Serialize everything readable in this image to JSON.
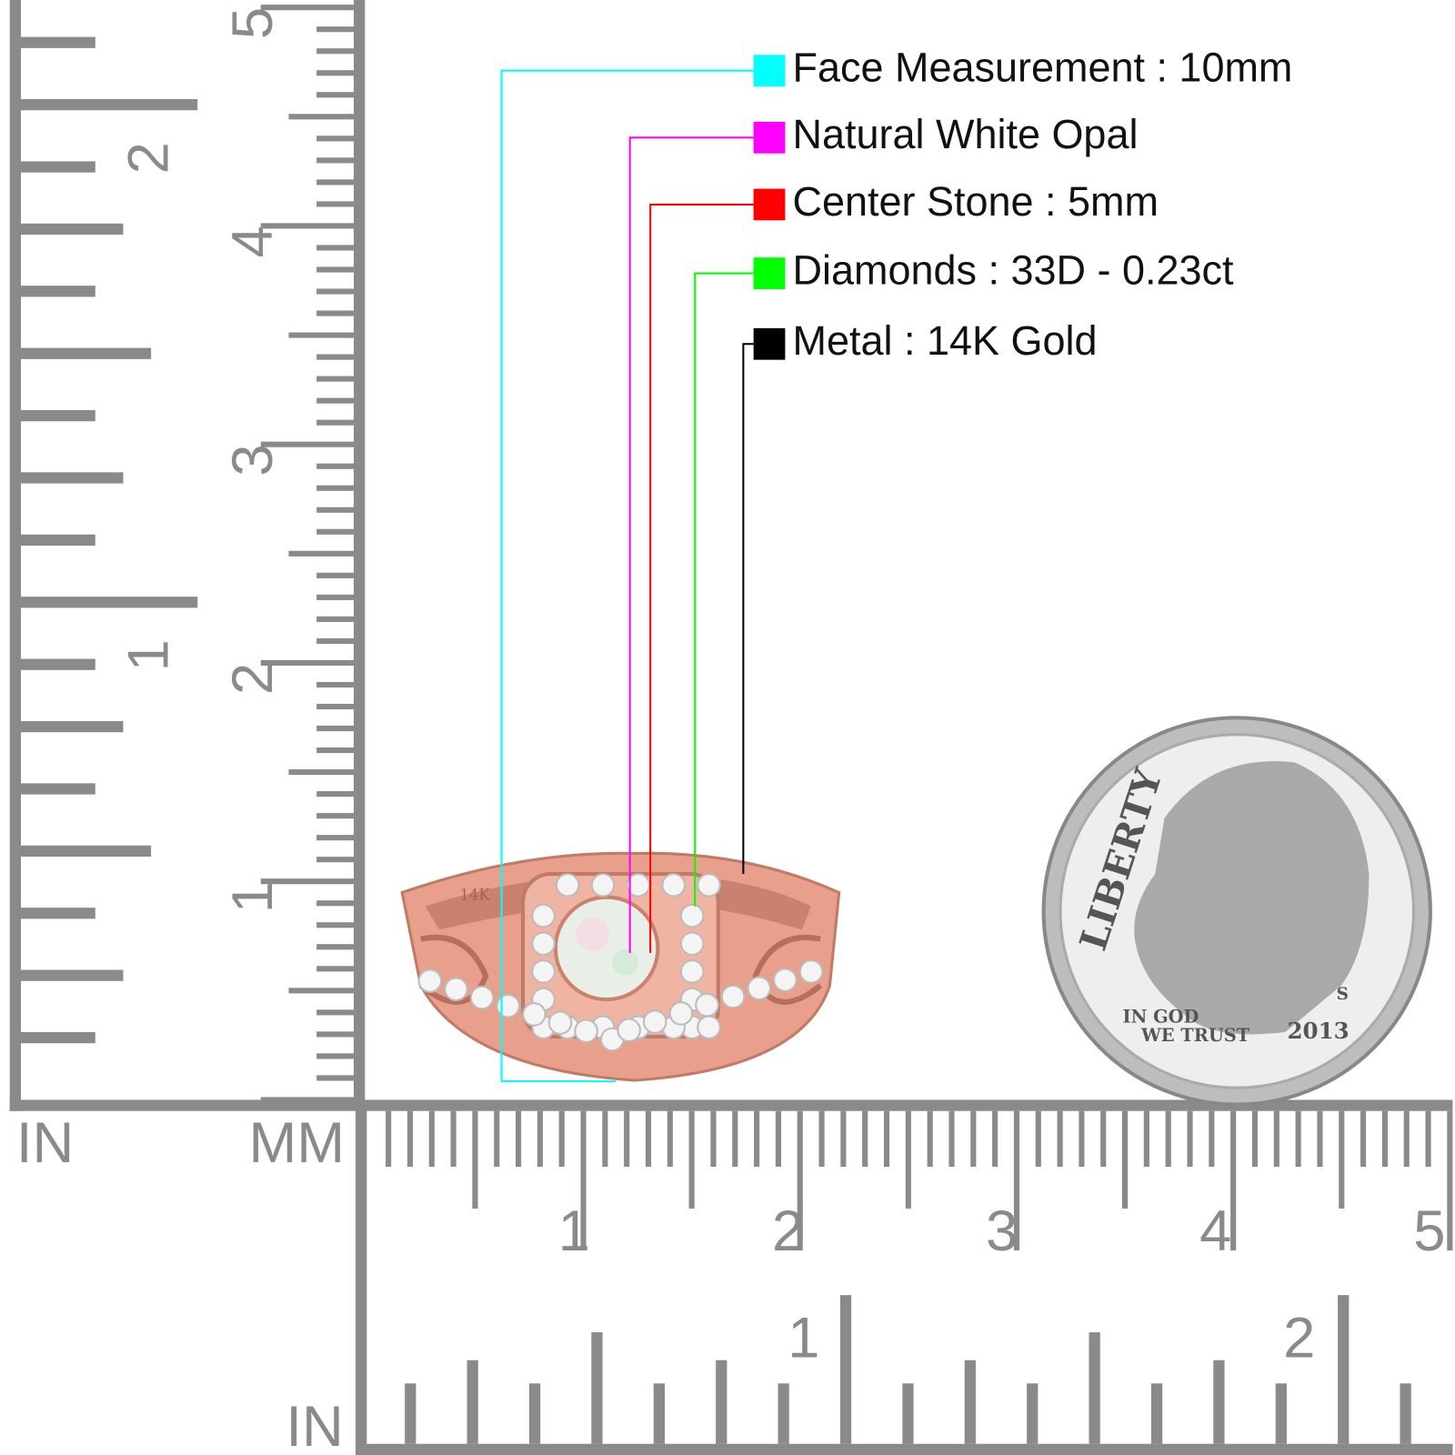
{
  "specs": [
    {
      "label": "Face Measurement : 10mm",
      "color": "#00ffff"
    },
    {
      "label": "Natural White Opal",
      "color": "#ff00ff"
    },
    {
      "label": "Center Stone : 5mm",
      "color": "#ff0000"
    },
    {
      "label": "Diamonds : 33D - 0.23ct",
      "color": "#00ff00"
    },
    {
      "label": "Metal : 14K Gold",
      "color": "#000000"
    }
  ],
  "left_ruler": {
    "unit_in": "IN",
    "unit_mm": "MM",
    "mm_labels": [
      "1",
      "2",
      "3",
      "4",
      "5"
    ],
    "in_labels": [
      "1",
      "2"
    ]
  },
  "bottom_ruler": {
    "unit_in": "IN",
    "mm_labels": [
      "1",
      "2",
      "3",
      "4",
      "5"
    ],
    "in_labels": [
      "1",
      "2"
    ]
  },
  "ring": {
    "engraving": "14K"
  },
  "coin": {
    "legend": "LIBERTY",
    "motto_1": "IN GOD",
    "motto_2": "WE TRUST",
    "year": "2013",
    "mint": "S"
  }
}
